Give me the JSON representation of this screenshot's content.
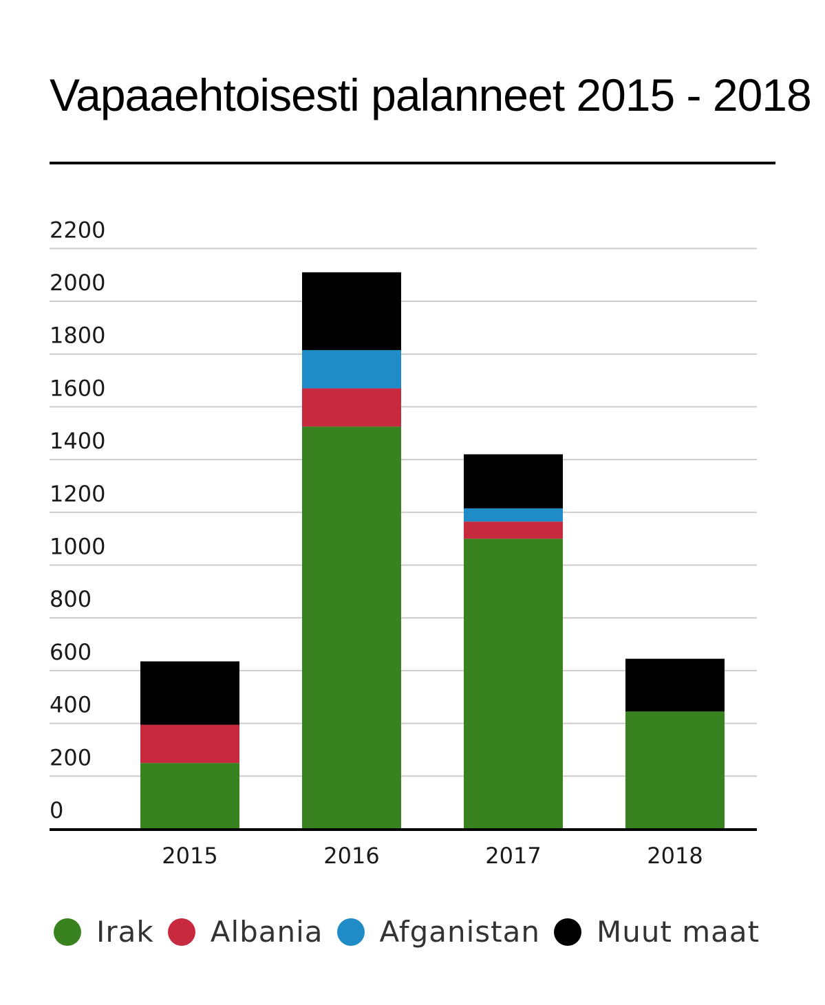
{
  "chart_data": {
    "type": "bar",
    "stacked": true,
    "title": "Vapaaehtoisesti palanneet 2015 - 2018",
    "xlabel": "",
    "ylabel": "",
    "categories": [
      "2015",
      "2016",
      "2017",
      "2018"
    ],
    "series": [
      {
        "name": "Irak",
        "color": "#38821f",
        "values": [
          250,
          1525,
          1100,
          445
        ]
      },
      {
        "name": "Albania",
        "color": "#c72a3f",
        "values": [
          145,
          145,
          65,
          0
        ]
      },
      {
        "name": "Afganistan",
        "color": "#1f8bc7",
        "values": [
          0,
          145,
          50,
          0
        ]
      },
      {
        "name": "Muut maat",
        "color": "#000000",
        "values": [
          240,
          295,
          205,
          200
        ]
      }
    ],
    "ylim": [
      0,
      2200
    ],
    "yticks": [
      0,
      200,
      400,
      600,
      800,
      1000,
      1200,
      1400,
      1600,
      1800,
      2000,
      2200
    ],
    "grid": true,
    "legend_position": "bottom"
  }
}
